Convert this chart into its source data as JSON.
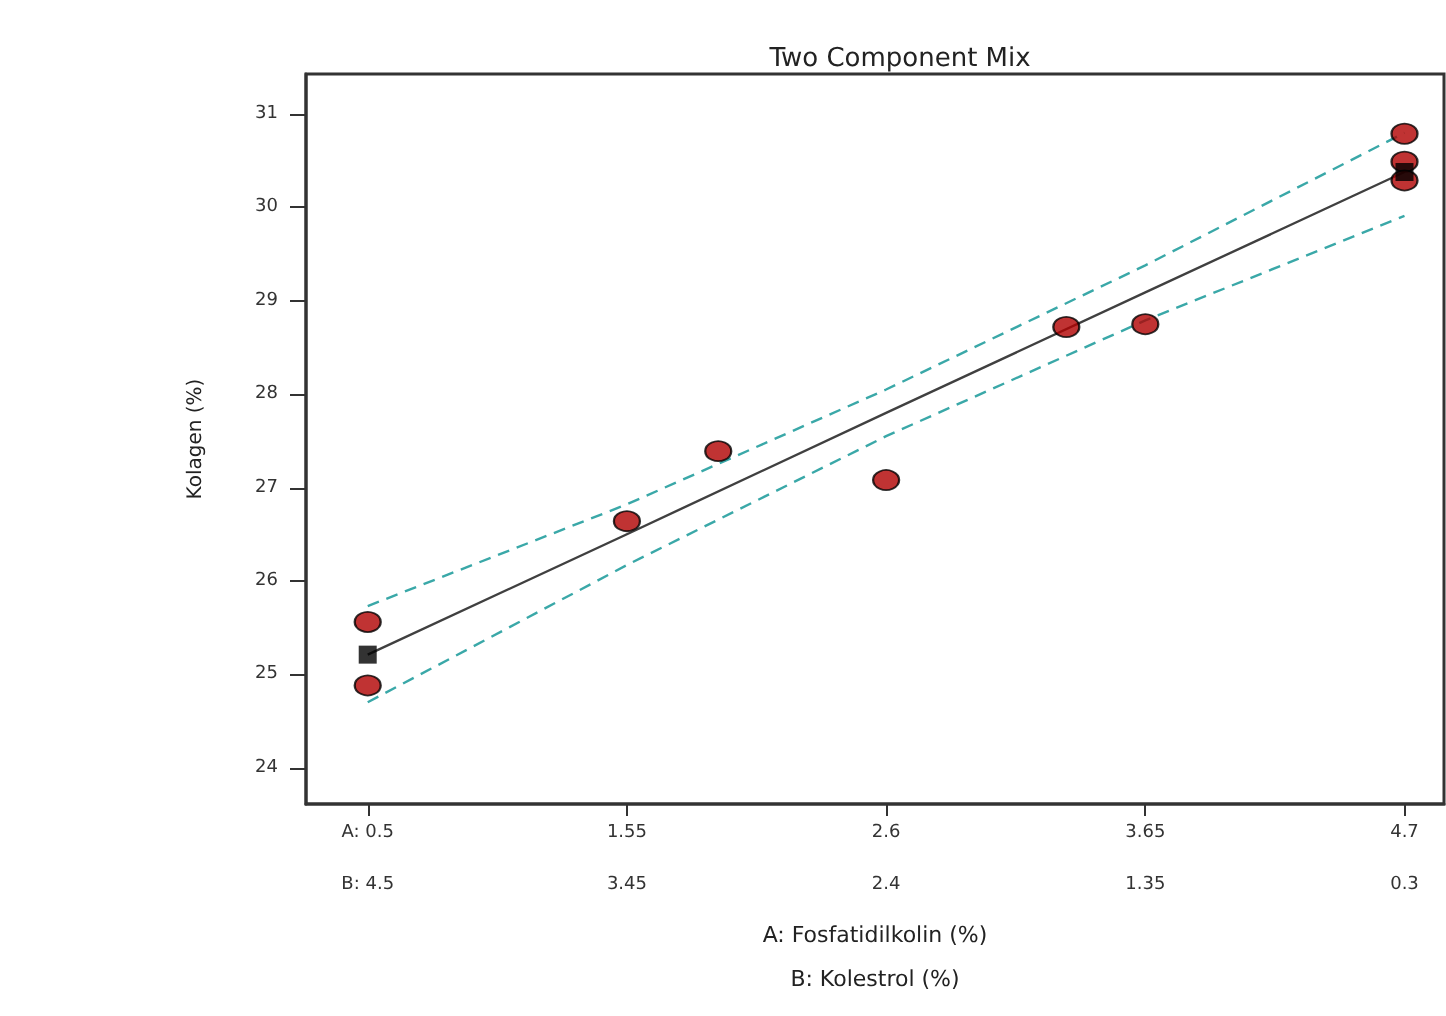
{
  "chart_data": {
    "type": "scatter",
    "title": "Two Component Mix",
    "xlabel": "A: Fosfatidilkolin (%)",
    "x2label": "B: Kolestrol (%)",
    "ylabel": "Kolagen (%)",
    "xlim": [
      0.25,
      4.86
    ],
    "ylim": [
      23.61,
      31.43
    ],
    "x2lim": [
      4.75,
      0.14
    ],
    "xticks": [
      {
        "value": 0.5,
        "label": "A: 0.5"
      },
      1.55,
      2.6,
      3.65,
      4.7
    ],
    "x2ticks": [
      {
        "value": 4.5,
        "label": "B: 4.5"
      },
      3.45,
      2.4,
      1.35,
      0.3
    ],
    "yticks": [
      24,
      25,
      26,
      27,
      28,
      29,
      30,
      31
    ],
    "grid": false,
    "series": [
      {
        "type": "line",
        "color": "#404040",
        "marker": "none",
        "line_style": "solid",
        "x": [
          0.5,
          1.55,
          2.6,
          3.65,
          4.7
        ],
        "values": [
          25.21,
          26.5,
          27.8,
          29.09,
          30.38
        ]
      },
      {
        "type": "line",
        "color": "#3aa8a8",
        "marker": "none",
        "line_style": "dashed",
        "x": [
          0.5,
          1.55,
          2.6,
          3.65,
          4.7
        ],
        "values": [
          25.73,
          26.82,
          28.05,
          29.38,
          30.8
        ]
      },
      {
        "type": "line",
        "color": "#3aa8a8",
        "marker": "none",
        "line_style": "dashed",
        "x": [
          0.5,
          1.55,
          2.6,
          3.65,
          4.7
        ],
        "values": [
          24.7,
          26.17,
          27.55,
          28.79,
          29.91
        ]
      },
      {
        "color": "#b00000",
        "marker": "circle",
        "x": [
          0.5,
          0.5,
          1.55,
          1.92,
          2.6,
          3.33,
          3.65,
          4.7,
          4.7,
          4.7
        ],
        "values": [
          25.56,
          24.88,
          26.64,
          27.39,
          27.08,
          28.72,
          28.75,
          30.79,
          30.49,
          30.29
        ]
      },
      {
        "type": "scatter",
        "color": "#000000",
        "marker": "square",
        "x": [
          0.5,
          4.7
        ],
        "values": [
          25.21,
          30.38
        ]
      }
    ]
  }
}
